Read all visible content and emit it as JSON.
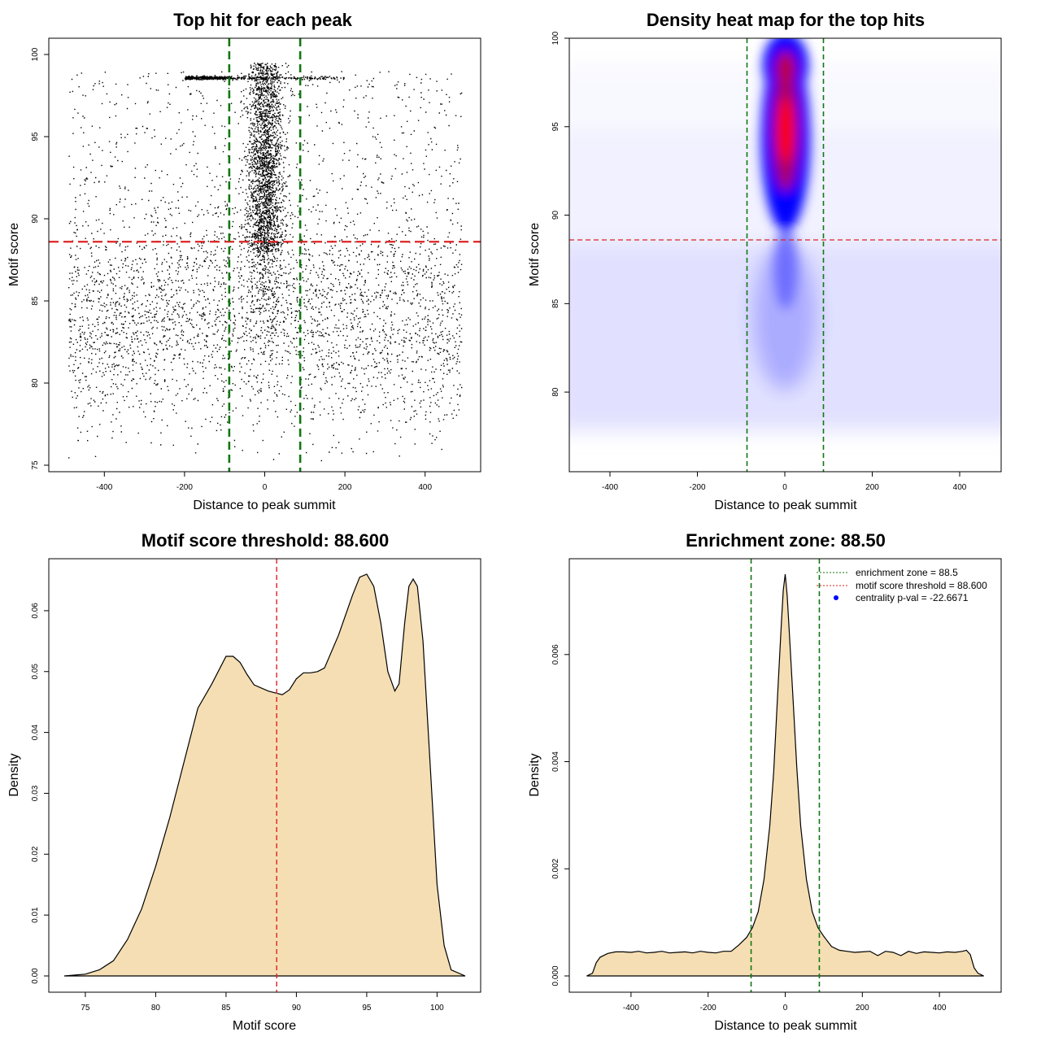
{
  "chart_data": [
    {
      "id": "scatter",
      "type": "scatter",
      "title": "Top hit for each peak",
      "xlabel": "Distance to peak summit",
      "ylabel": "Motif score",
      "xlim": [
        -500,
        500
      ],
      "ylim": [
        75,
        100
      ],
      "xticks": [
        -400,
        -200,
        0,
        200,
        400
      ],
      "yticks": [
        75,
        80,
        85,
        90,
        95,
        100
      ],
      "threshold_y": 88.6,
      "zone_x": [
        -88.5,
        88.5
      ],
      "threshold_color": "#dd2222",
      "zone_color": "#117711",
      "point_color": "#000000",
      "point_count_approx": 14000
    },
    {
      "id": "heatmap",
      "type": "heatmap",
      "title": "Density heat map for the top hits",
      "xlabel": "Distance to peak summit",
      "ylabel": "Motif score",
      "xlim": [
        -500,
        500
      ],
      "ylim": [
        75.5,
        100
      ],
      "xticks": [
        -400,
        -200,
        0,
        200,
        400
      ],
      "yticks": [
        80,
        85,
        90,
        95,
        100
      ],
      "threshold_y": 88.6,
      "zone_x": [
        -88.5,
        88.5
      ],
      "colors": [
        "#ffffff",
        "#0000ff",
        "#ff0000"
      ],
      "threshold_color": "#dd2222",
      "zone_color": "#117711"
    },
    {
      "id": "score_density",
      "type": "area",
      "title": "Motif score threshold: 88.600",
      "xlabel": "Motif score",
      "ylabel": "Density",
      "xlim": [
        73.5,
        102
      ],
      "ylim": [
        0,
        0.066
      ],
      "xticks": [
        75,
        80,
        85,
        90,
        95,
        100
      ],
      "yticks": [
        0,
        0.01,
        0.02,
        0.03,
        0.04,
        0.05,
        0.06
      ],
      "ytick_labels": [
        "0.00",
        "0.01",
        "0.02",
        "0.03",
        "0.04",
        "0.05",
        "0.06"
      ],
      "threshold_x": 88.6,
      "fill_color": "#f5deb3",
      "threshold_color": "#dd2222",
      "x": [
        73.5,
        75,
        76,
        77,
        78,
        79,
        80,
        81,
        82,
        83,
        84,
        85,
        85.5,
        86,
        86.5,
        87,
        88,
        89,
        89.5,
        90,
        90.5,
        91,
        91.5,
        92,
        93,
        94,
        94.5,
        95,
        95.5,
        96,
        96.5,
        97,
        97.3,
        97.7,
        98,
        98.3,
        98.6,
        99,
        99.5,
        100,
        100.5,
        101,
        102
      ],
      "y": [
        0,
        0.0003,
        0.001,
        0.0025,
        0.006,
        0.011,
        0.018,
        0.026,
        0.035,
        0.044,
        0.048,
        0.0525,
        0.0525,
        0.0515,
        0.0495,
        0.0478,
        0.0468,
        0.0462,
        0.047,
        0.0488,
        0.0498,
        0.0498,
        0.05,
        0.0506,
        0.056,
        0.0626,
        0.0655,
        0.066,
        0.064,
        0.058,
        0.05,
        0.0468,
        0.048,
        0.058,
        0.064,
        0.0652,
        0.064,
        0.055,
        0.035,
        0.015,
        0.005,
        0.001,
        0
      ]
    },
    {
      "id": "distance_density",
      "type": "area",
      "title": "Enrichment zone: 88.50",
      "xlabel": "Distance to peak summit",
      "ylabel": "Density",
      "xlim": [
        -520,
        520
      ],
      "ylim": [
        0,
        0.0075
      ],
      "xticks": [
        -400,
        -200,
        0,
        200,
        400
      ],
      "yticks": [
        0,
        0.002,
        0.004,
        0.006
      ],
      "ytick_labels": [
        "0.000",
        "0.002",
        "0.004",
        "0.006"
      ],
      "zone_x": [
        -88.5,
        88.5
      ],
      "fill_color": "#f5deb3",
      "zone_color": "#117711",
      "threshold_color": "#dd2222",
      "legend": [
        {
          "label": "enrichment zone = 88.5",
          "style": "dotted",
          "color": "#117711"
        },
        {
          "label": "motif score threshold = 88.600",
          "style": "dotted",
          "color": "#dd2222"
        },
        {
          "label": "centrality p-val = -22.6671",
          "style": "point",
          "color": "#0000ff"
        }
      ],
      "x": [
        -515,
        -500,
        -490,
        -480,
        -460,
        -440,
        -420,
        -400,
        -380,
        -360,
        -340,
        -320,
        -300,
        -280,
        -260,
        -240,
        -220,
        -200,
        -180,
        -160,
        -140,
        -120,
        -100,
        -85,
        -70,
        -55,
        -40,
        -30,
        -20,
        -10,
        -5,
        0,
        5,
        10,
        20,
        30,
        40,
        55,
        70,
        85,
        100,
        120,
        140,
        160,
        180,
        200,
        220,
        240,
        260,
        280,
        300,
        320,
        340,
        360,
        380,
        400,
        420,
        440,
        460,
        470,
        480,
        490,
        500,
        515
      ],
      "y": [
        0,
        5e-05,
        0.00025,
        0.00035,
        0.00042,
        0.00045,
        0.00045,
        0.00044,
        0.00046,
        0.00043,
        0.00044,
        0.00046,
        0.00043,
        0.00044,
        0.00045,
        0.00043,
        0.00046,
        0.00044,
        0.00043,
        0.00046,
        0.00046,
        0.00058,
        0.00072,
        0.0009,
        0.0012,
        0.0018,
        0.0028,
        0.0038,
        0.0052,
        0.0066,
        0.0072,
        0.0075,
        0.0071,
        0.0065,
        0.0052,
        0.0039,
        0.0028,
        0.0018,
        0.0012,
        0.0009,
        0.00074,
        0.00055,
        0.00048,
        0.00046,
        0.00044,
        0.00045,
        0.00046,
        0.00038,
        0.00046,
        0.00044,
        0.00038,
        0.00046,
        0.00042,
        0.00045,
        0.00044,
        0.00043,
        0.00045,
        0.00044,
        0.00046,
        0.00048,
        0.0004,
        0.00015,
        5e-05,
        0
      ]
    }
  ]
}
